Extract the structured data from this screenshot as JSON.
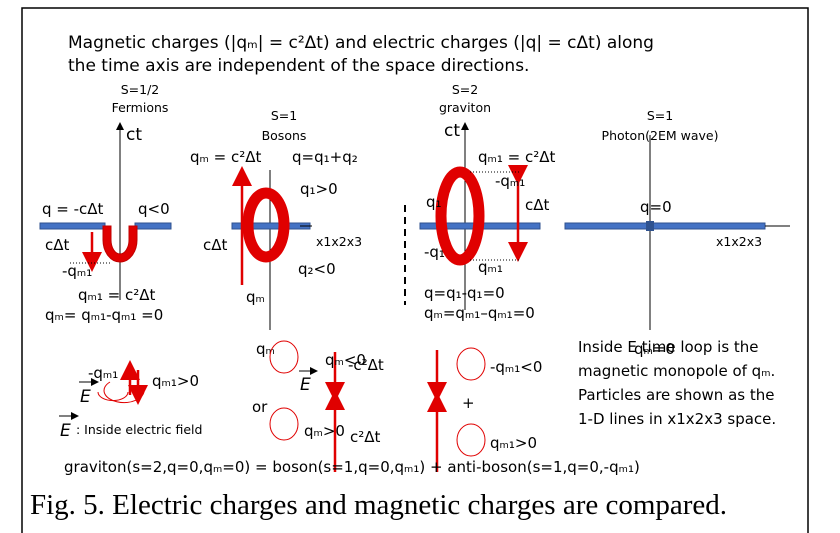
{
  "header": [
    "Magnetic charges (|qₘ| = c²Δt) and electric charges (|q| = cΔt) along",
    "the time axis are independent of the space directions."
  ],
  "panels": [
    {
      "spin": "S=1/2",
      "name": "Fermions",
      "axis": "ct",
      "labels": [
        "q = -cΔt",
        "q<0",
        "cΔt",
        "-qₘ₁",
        "qₘ₁ = c²Δt",
        "qₘ= qₘ₁-qₘ₁ =0"
      ]
    },
    {
      "spin": "S=1",
      "name": "Bosons",
      "labels": [
        "qₘ = c²Δt",
        "q=q₁+q₂",
        "q₁>0",
        "cΔt",
        "x1x2x3",
        "qₘ",
        "q₂<0",
        "qₘ"
      ]
    },
    {
      "spin": "S=2",
      "name": "graviton",
      "axis": "ct",
      "labels": [
        "qₘ₁ = c²Δt",
        "-qₘ₁",
        "cΔt",
        "q₁",
        "-q₁",
        "qₘ₁",
        "q=q₁-q₁=0",
        "qₘ=qₘ₁–qₘ₁=0"
      ]
    },
    {
      "spin": "S=1",
      "name": "Photon(2EM wave)",
      "labels": [
        "q=0",
        "x1x2x3",
        "qₘ=0"
      ]
    }
  ],
  "loops": {
    "fermion": [
      "-qₘ₁",
      "qₘ₁>0",
      "E",
      ": Inside electric field"
    ],
    "boson": [
      "qₘ<0",
      "or",
      "E",
      "-c²Δt",
      "c²Δt",
      "qₘ>0"
    ],
    "graviton": [
      "-qₘ₁<0",
      "+",
      "qₘ₁>0"
    ]
  },
  "note": [
    "Inside E time loop is the",
    "magnetic monopole of qₘ.",
    "Particles are shown as the",
    "1-D lines in x1x2x3 space."
  ],
  "equation": "graviton(s=2,q=0,qₘ=0) = boson(s=1,q=0,qₘ₁) + anti-boson(s=1,q=0,-qₘ₁)",
  "caption": "Fig. 5. Electric charges and magnetic charges are compared."
}
